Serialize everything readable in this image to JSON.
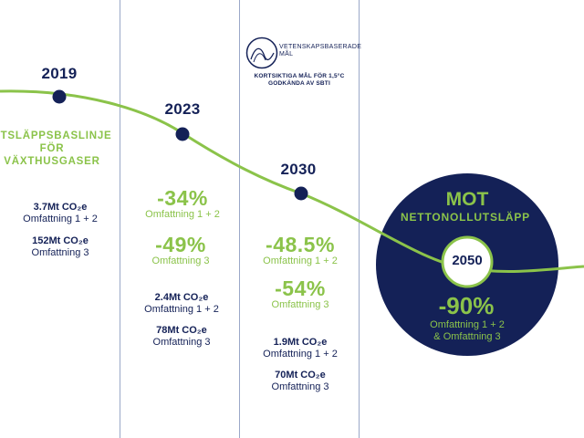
{
  "colors": {
    "navy": "#142157",
    "green": "#8bc34a",
    "divider": "#9aa8c8"
  },
  "milestones": [
    {
      "year": "2019",
      "label_lines": [
        "UTSLÄPPSBASLINJE",
        "FÖR",
        "VÄXTHUSGASER"
      ],
      "values": [
        {
          "amount": "3.7Mt CO₂e",
          "scope": "Omfattning 1 + 2"
        },
        {
          "amount": "152Mt CO₂e",
          "scope": "Omfattning 3"
        }
      ]
    },
    {
      "year": "2023",
      "targets": [
        {
          "pct": "-34%",
          "scope": "Omfattning 1 + 2"
        },
        {
          "pct": "-49%",
          "scope": "Omfattning 3"
        }
      ],
      "values": [
        {
          "amount": "2.4Mt CO₂e",
          "scope": "Omfattning 1 + 2"
        },
        {
          "amount": "78Mt CO₂e",
          "scope": "Omfattning 3"
        }
      ]
    },
    {
      "year": "2030",
      "targets": [
        {
          "pct": "-48.5%",
          "scope": "Omfattning 1 + 2"
        },
        {
          "pct": "-54%",
          "scope": "Omfattning 3"
        }
      ],
      "values": [
        {
          "amount": "1.9Mt CO₂e",
          "scope": "Omfattning 1 + 2"
        },
        {
          "amount": "70Mt CO₂e",
          "scope": "Omfattning 3"
        }
      ]
    }
  ],
  "sbti": {
    "logo_icon": "sbti-logo-icon",
    "logo_label": [
      "VETENSKAPSBASERADE",
      "MÅL"
    ],
    "caption": [
      "KORTSIKTIGA MÅL FÖR 1,5°C",
      "GODKÄNDA AV SBTI"
    ]
  },
  "final": {
    "title": "MOT",
    "subtitle": "NETTONOLLUTSLÄPP",
    "year": "2050",
    "pct": "-90%",
    "scope_lines": [
      "Omfattning 1 + 2",
      "& Omfattning 3"
    ]
  }
}
